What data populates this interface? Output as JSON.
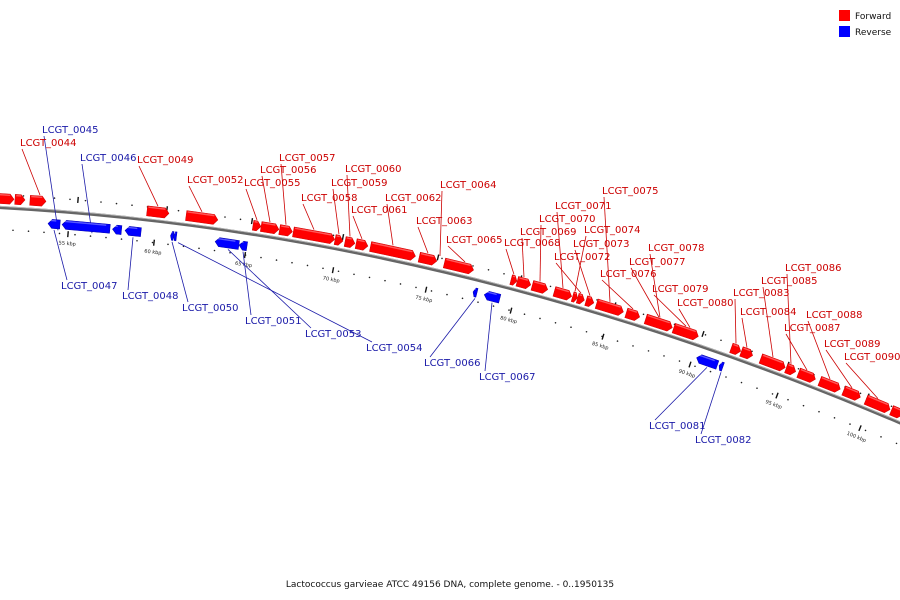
{
  "legend": {
    "forward": {
      "label": "Forward",
      "color": "#ff0000"
    },
    "reverse": {
      "label": "Reverse",
      "color": "#0000ff"
    }
  },
  "caption": "Lactococcus garvieae ATCC 49156 DNA, complete genome. - 0..1950135",
  "ticks": [
    "55 kbp",
    "60 kbp",
    "65 kbp",
    "70 kbp",
    "75 kbp",
    "80 kbp",
    "85 kbp",
    "90 kbp",
    "95 kbp",
    "100 kbp"
  ],
  "genes": [
    {
      "id": "LCGT_0044",
      "strand": "forward"
    },
    {
      "id": "LCGT_0045",
      "strand": "reverse"
    },
    {
      "id": "LCGT_0046",
      "strand": "reverse"
    },
    {
      "id": "LCGT_0047",
      "strand": "reverse"
    },
    {
      "id": "LCGT_0048",
      "strand": "reverse"
    },
    {
      "id": "LCGT_0049",
      "strand": "forward"
    },
    {
      "id": "LCGT_0050",
      "strand": "reverse"
    },
    {
      "id": "LCGT_0051",
      "strand": "reverse"
    },
    {
      "id": "LCGT_0052",
      "strand": "forward"
    },
    {
      "id": "LCGT_0053",
      "strand": "reverse"
    },
    {
      "id": "LCGT_0054",
      "strand": "reverse"
    },
    {
      "id": "LCGT_0055",
      "strand": "forward"
    },
    {
      "id": "LCGT_0056",
      "strand": "forward"
    },
    {
      "id": "LCGT_0057",
      "strand": "forward"
    },
    {
      "id": "LCGT_0058",
      "strand": "forward"
    },
    {
      "id": "LCGT_0059",
      "strand": "forward"
    },
    {
      "id": "LCGT_0060",
      "strand": "forward"
    },
    {
      "id": "LCGT_0061",
      "strand": "forward"
    },
    {
      "id": "LCGT_0062",
      "strand": "forward"
    },
    {
      "id": "LCGT_0063",
      "strand": "forward"
    },
    {
      "id": "LCGT_0064",
      "strand": "forward"
    },
    {
      "id": "LCGT_0065",
      "strand": "forward"
    },
    {
      "id": "LCGT_0066",
      "strand": "reverse"
    },
    {
      "id": "LCGT_0067",
      "strand": "reverse"
    },
    {
      "id": "LCGT_0068",
      "strand": "forward"
    },
    {
      "id": "LCGT_0069",
      "strand": "forward"
    },
    {
      "id": "LCGT_0070",
      "strand": "forward"
    },
    {
      "id": "LCGT_0071",
      "strand": "forward"
    },
    {
      "id": "LCGT_0072",
      "strand": "forward"
    },
    {
      "id": "LCGT_0073",
      "strand": "forward"
    },
    {
      "id": "LCGT_0074",
      "strand": "forward"
    },
    {
      "id": "LCGT_0075",
      "strand": "forward"
    },
    {
      "id": "LCGT_0076",
      "strand": "forward"
    },
    {
      "id": "LCGT_0077",
      "strand": "forward"
    },
    {
      "id": "LCGT_0078",
      "strand": "forward"
    },
    {
      "id": "LCGT_0079",
      "strand": "forward"
    },
    {
      "id": "LCGT_0080",
      "strand": "forward"
    },
    {
      "id": "LCGT_0081",
      "strand": "reverse"
    },
    {
      "id": "LCGT_0082",
      "strand": "reverse"
    },
    {
      "id": "LCGT_0083",
      "strand": "forward"
    },
    {
      "id": "LCGT_0084",
      "strand": "forward"
    },
    {
      "id": "LCGT_0085",
      "strand": "forward"
    },
    {
      "id": "LCGT_0086",
      "strand": "forward"
    },
    {
      "id": "LCGT_0087",
      "strand": "forward"
    },
    {
      "id": "LCGT_0088",
      "strand": "forward"
    },
    {
      "id": "LCGT_0089",
      "strand": "forward"
    },
    {
      "id": "LCGT_0090",
      "strand": "forward"
    }
  ]
}
